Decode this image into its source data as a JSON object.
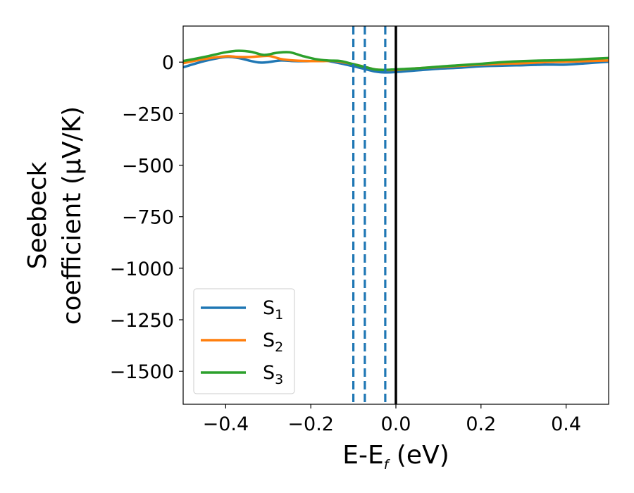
{
  "chart_data": {
    "type": "line",
    "title": "",
    "xlabel": {
      "main": "E-E",
      "sub": "f",
      "unit": " (eV)"
    },
    "ylabel": {
      "line1": "Seebeck",
      "line2": "coefficient  (μV/K)"
    },
    "xlim": [
      -0.5,
      0.5
    ],
    "ylim": [
      -1660,
      175
    ],
    "xticks": [
      -0.4,
      -0.2,
      0.0,
      0.2,
      0.4
    ],
    "xtick_labels": [
      "−0.4",
      "−0.2",
      "0.0",
      "0.2",
      "0.4"
    ],
    "yticks": [
      0,
      -250,
      -500,
      -750,
      -1000,
      -1250,
      -1500
    ],
    "ytick_labels": [
      "0",
      "−250",
      "−500",
      "−750",
      "−1000",
      "−1250",
      "−1500"
    ],
    "grid": false,
    "legend_placement": "lower-left",
    "series": [
      {
        "name": "S",
        "sub": "1",
        "color": "#1f77b4",
        "x": [
          -0.5,
          -0.45,
          -0.4,
          -0.37,
          -0.34,
          -0.32,
          -0.3,
          -0.27,
          -0.24,
          -0.2,
          -0.17,
          -0.14,
          -0.1,
          -0.07,
          -0.05,
          -0.03,
          0.0,
          0.05,
          0.1,
          0.15,
          0.2,
          0.25,
          0.3,
          0.35,
          0.4,
          0.45,
          0.5
        ],
        "y": [
          -25,
          5,
          25,
          20,
          5,
          -2,
          0,
          8,
          5,
          5,
          8,
          -2,
          -20,
          -35,
          -45,
          -50,
          -48,
          -40,
          -32,
          -27,
          -20,
          -17,
          -15,
          -12,
          -12,
          -5,
          2
        ]
      },
      {
        "name": "S",
        "sub": "2",
        "color": "#ff7f0e",
        "x": [
          -0.5,
          -0.45,
          -0.4,
          -0.37,
          -0.34,
          -0.3,
          -0.27,
          -0.24,
          -0.2,
          -0.17,
          -0.14,
          -0.1,
          -0.07,
          -0.05,
          -0.03,
          0.0,
          0.05,
          0.1,
          0.15,
          0.2,
          0.25,
          0.3,
          0.35,
          0.4,
          0.45,
          0.5
        ],
        "y": [
          -5,
          15,
          28,
          25,
          25,
          30,
          15,
          8,
          5,
          5,
          5,
          -10,
          -25,
          -35,
          -38,
          -38,
          -30,
          -24,
          -18,
          -12,
          -8,
          -5,
          0,
          2,
          5,
          8
        ]
      },
      {
        "name": "S",
        "sub": "3",
        "color": "#2ca02c",
        "x": [
          -0.5,
          -0.45,
          -0.4,
          -0.37,
          -0.34,
          -0.31,
          -0.28,
          -0.25,
          -0.22,
          -0.19,
          -0.16,
          -0.13,
          -0.1,
          -0.07,
          -0.05,
          -0.03,
          0.0,
          0.05,
          0.1,
          0.15,
          0.2,
          0.25,
          0.3,
          0.35,
          0.4,
          0.45,
          0.5
        ],
        "y": [
          5,
          25,
          48,
          55,
          50,
          35,
          45,
          48,
          30,
          15,
          8,
          5,
          -10,
          -25,
          -35,
          -38,
          -35,
          -30,
          -22,
          -15,
          -8,
          0,
          5,
          8,
          10,
          15,
          20
        ]
      }
    ],
    "vertical_lines": [
      {
        "x": -0.1,
        "style": "dashed",
        "color": "#1f77b4"
      },
      {
        "x": -0.073,
        "style": "dashed",
        "color": "#1f77b4"
      },
      {
        "x": -0.025,
        "style": "dashed",
        "color": "#1f77b4"
      },
      {
        "x": 0.0,
        "style": "solid",
        "color": "#000000"
      }
    ]
  }
}
